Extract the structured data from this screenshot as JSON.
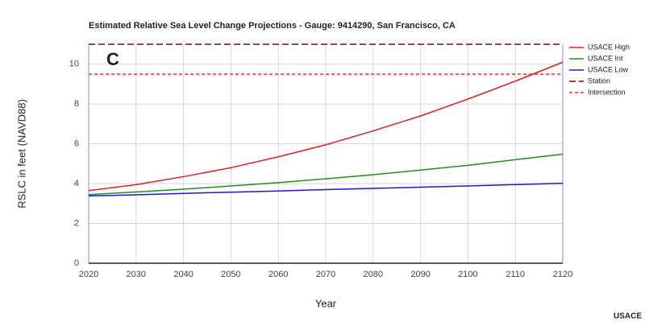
{
  "chart_data": {
    "type": "line",
    "title": "Estimated Relative Sea Level Change Projections - Gauge: 9414290, San Francisco, CA",
    "annotation": "C",
    "credit": "USACE",
    "x_label": "Year",
    "y_label": "RSLC in feet (NAVD88)",
    "x": [
      2020,
      2030,
      2040,
      2050,
      2060,
      2070,
      2080,
      2090,
      2100,
      2110,
      2120
    ],
    "xlim": [
      2020,
      2120
    ],
    "xticks": [
      2020,
      2030,
      2040,
      2050,
      2060,
      2070,
      2080,
      2090,
      2100,
      2110,
      2120
    ],
    "ylim": [
      0,
      11
    ],
    "yticks": [
      0,
      2,
      4,
      6,
      8,
      10
    ],
    "grid": true,
    "legend": "right",
    "series": [
      {
        "name": "USACE High",
        "color": "#dd2222",
        "dash": "solid",
        "values": [
          3.65,
          3.95,
          4.35,
          4.8,
          5.35,
          5.95,
          6.65,
          7.4,
          8.25,
          9.15,
          10.1
        ]
      },
      {
        "name": "USACE Int",
        "color": "#228b22",
        "dash": "solid",
        "values": [
          3.45,
          3.58,
          3.72,
          3.88,
          4.05,
          4.24,
          4.45,
          4.68,
          4.92,
          5.2,
          5.48
        ]
      },
      {
        "name": "USACE Low",
        "color": "#1a1acc",
        "dash": "solid",
        "values": [
          3.38,
          3.44,
          3.51,
          3.57,
          3.63,
          3.7,
          3.76,
          3.82,
          3.88,
          3.95,
          4.02
        ]
      },
      {
        "name": "Station",
        "color": "#8b0000",
        "dash": "long",
        "values": [
          11,
          11,
          11,
          11,
          11,
          11,
          11,
          11,
          11,
          11,
          11
        ]
      },
      {
        "name": "Intersection",
        "color": "#ff2a2a",
        "dash": "short",
        "values": [
          9.5,
          9.5,
          9.5,
          9.5,
          9.5,
          9.5,
          9.5,
          9.5,
          9.5,
          9.5,
          9.5
        ]
      }
    ]
  }
}
